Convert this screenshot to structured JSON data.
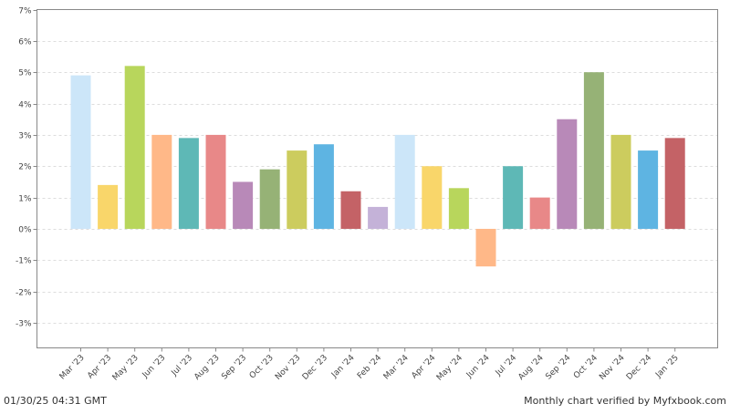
{
  "chart_data": {
    "type": "bar",
    "categories": [
      "Mar '23",
      "Apr '23",
      "May '23",
      "Jun '23",
      "Jul '23",
      "Aug '23",
      "Sep '23",
      "Oct '23",
      "Nov '23",
      "Dec '23",
      "Jan '24",
      "Feb '24",
      "Mar '24",
      "Apr '24",
      "May '24",
      "Jun '24",
      "Jul '24",
      "Aug '24",
      "Sep '24",
      "Oct '24",
      "Nov '24",
      "Dec '24",
      "Jan '25"
    ],
    "values": [
      4.9,
      1.4,
      5.2,
      3.0,
      2.9,
      3.0,
      1.5,
      1.9,
      2.5,
      2.7,
      1.2,
      0.7,
      3.0,
      2.0,
      1.3,
      -1.2,
      2.0,
      1.0,
      3.5,
      5.0,
      3.0,
      2.5,
      2.9
    ],
    "colors": [
      "#cce6f9",
      "#f9d66a",
      "#b8d65c",
      "#ffb888",
      "#5eb8b6",
      "#e88888",
      "#b889b8",
      "#96b276",
      "#cccc5e",
      "#5eb4e2",
      "#c46266",
      "#c4b2d8",
      "#cce6f9",
      "#f9d66a",
      "#b8d65c",
      "#ffb888",
      "#5eb8b6",
      "#e88888",
      "#b889b8",
      "#96b276",
      "#cccc5e",
      "#5eb4e2",
      "#c46266"
    ],
    "ylim": [
      -3.8,
      7
    ],
    "yticks": [
      -3,
      -2,
      -1,
      0,
      1,
      2,
      3,
      4,
      5,
      6,
      7
    ],
    "ytick_labels": [
      "-3%",
      "-2%",
      "-1%",
      "0%",
      "1%",
      "2%",
      "3%",
      "4%",
      "5%",
      "6%",
      "7%"
    ],
    "grid": true,
    "title": "",
    "xlabel": "",
    "ylabel": ""
  },
  "footer": {
    "timestamp": "01/30/25 04:31 GMT",
    "verified": "Monthly chart verified by Myfxbook.com"
  }
}
